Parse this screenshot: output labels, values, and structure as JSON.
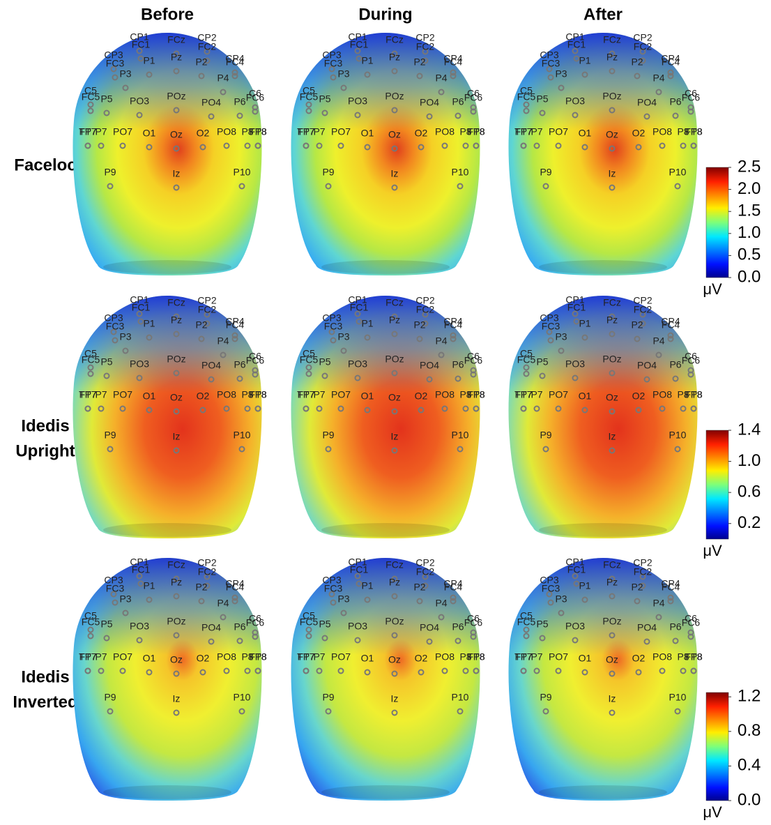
{
  "columns": [
    "Before",
    "During",
    "After"
  ],
  "rows": [
    {
      "label": [
        "Faceloc"
      ],
      "colorbar": {
        "lim": [
          0,
          2.5
        ],
        "ticks": [
          {
            "value": 2.5,
            "label": "2.5"
          },
          {
            "value": 2.0,
            "label": "2.0"
          },
          {
            "value": 1.5,
            "label": "1.5"
          },
          {
            "value": 1.0,
            "label": "1.0"
          },
          {
            "value": 0.5,
            "label": "0.5"
          },
          {
            "value": 0,
            "label": "0.0"
          }
        ],
        "unit": "μV"
      }
    },
    {
      "label": [
        "Idedis",
        "Upright"
      ],
      "colorbar": {
        "lim": [
          0,
          1.4
        ],
        "ticks": [
          {
            "value": 1.4,
            "label": "1.4"
          },
          {
            "value": 1.0,
            "label": "1.0"
          },
          {
            "value": 0.6,
            "label": "0.6"
          },
          {
            "value": 0.2,
            "label": "0.2"
          }
        ],
        "unit": "μV"
      }
    },
    {
      "label": [
        "Idedis",
        "Inverted"
      ],
      "colorbar": {
        "lim": [
          0,
          1.25
        ],
        "ticks": [
          {
            "value": 1.2,
            "label": "1.2"
          },
          {
            "value": 0.8,
            "label": "0.8"
          },
          {
            "value": 0.4,
            "label": "0.4"
          },
          {
            "value": 0,
            "label": "0.0"
          }
        ],
        "unit": "μV"
      }
    }
  ],
  "electrodes": [
    "CP1",
    "FC1",
    "FCz",
    "CP2",
    "FC2",
    "CP3",
    "FC3",
    "P1",
    "Pz",
    "P2",
    "CP4",
    "FC4",
    "P3",
    "P4",
    "C5",
    "FC5",
    "P5",
    "PO3",
    "POz",
    "PO4",
    "P6",
    "C6",
    "FC6",
    "TP7",
    "FT7",
    "P7",
    "PO7",
    "O1",
    "Oz",
    "O2",
    "PO8",
    "P8",
    "TP8",
    "FT8",
    "P9",
    "Iz",
    "P10"
  ]
}
